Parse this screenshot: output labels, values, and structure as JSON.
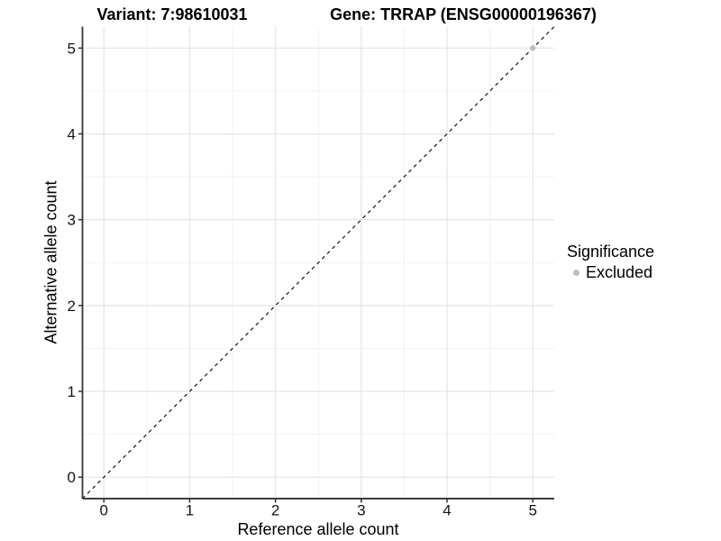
{
  "figure": {
    "title_left": "Variant: 7:98610031",
    "title_right": "Gene: TRRAP (ENSG00000196367)"
  },
  "axes": {
    "x_label": "Reference allele count",
    "y_label": "Alternative allele count"
  },
  "legend": {
    "title": "Significance",
    "items": [
      {
        "label": "Excluded",
        "color": "#bebebe"
      }
    ]
  },
  "colors": {
    "background": "#ffffff",
    "grid_major": "#e4e4e4",
    "grid_minor": "#f1f1f1",
    "axis_line": "#3d3d3d",
    "tick_mark": "#333333",
    "tick_text": "#141414",
    "reference_line": "#000000",
    "point": "#bebebe"
  },
  "chart_data": {
    "type": "scatter",
    "title": "Variant: 7:98610031 — Gene: TRRAP (ENSG00000196367)",
    "xlabel": "Reference allele count",
    "ylabel": "Alternative allele count",
    "xlim": [
      -0.25,
      5.25
    ],
    "ylim": [
      -0.25,
      5.25
    ],
    "x_ticks": [
      0,
      1,
      2,
      3,
      4,
      5
    ],
    "y_ticks": [
      0,
      1,
      2,
      3,
      4,
      5
    ],
    "x_minor": [
      0.5,
      1.5,
      2.5,
      3.5,
      4.5
    ],
    "y_minor": [
      0.5,
      1.5,
      2.5,
      3.5,
      4.5
    ],
    "grid": "major+minor",
    "legend_position": "right",
    "reference_line": {
      "kind": "identity",
      "slope": 1,
      "intercept": 0,
      "style": "dashed",
      "color": "#000000"
    },
    "series": [
      {
        "name": "Excluded",
        "color": "#bebebe",
        "marker": "circle",
        "points": [
          {
            "x": 5,
            "y": 5
          }
        ]
      }
    ]
  }
}
